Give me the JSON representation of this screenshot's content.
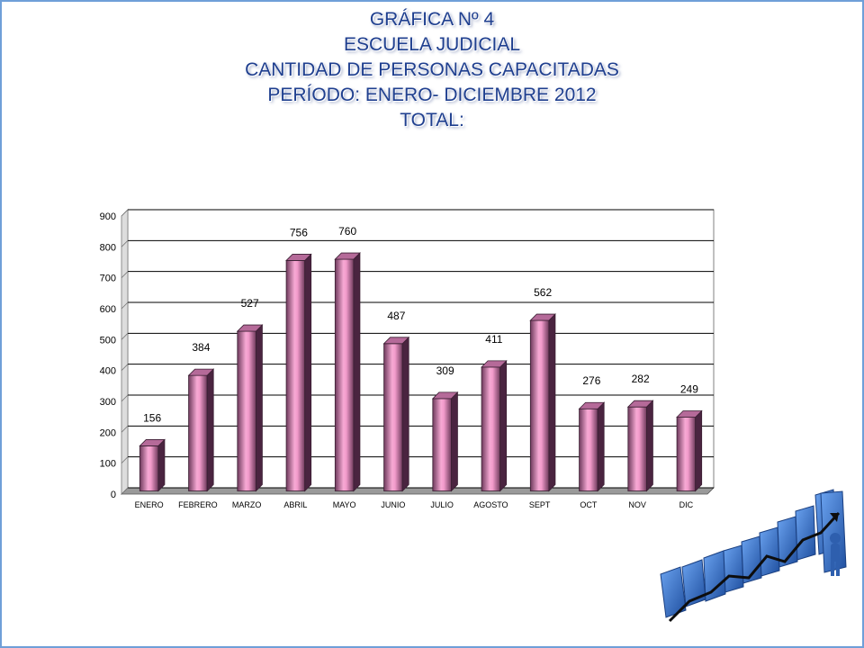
{
  "title_lines": [
    "GRÁFICA Nº 4",
    "ESCUELA JUDICIAL",
    "CANTIDAD DE PERSONAS CAPACITADAS",
    "PERÍODO: ENERO- DICIEMBRE 2012",
    "TOTAL:"
  ],
  "colors": {
    "title": "#1f3f8f",
    "bar_light": "#f7a9d4",
    "bar_dark": "#6e3a5c",
    "frame": "#6f9fd8",
    "deco_blue": "#3b72c6"
  },
  "chart_data": {
    "type": "bar",
    "style": "3d-column",
    "categories": [
      "ENERO",
      "FEBRERO",
      "MARZO",
      "ABRIL",
      "MAYO",
      "JUNIO",
      "JULIO",
      "AGOSTO",
      "SEPT",
      "OCT",
      "NOV",
      "DIC"
    ],
    "values": [
      156,
      384,
      527,
      756,
      760,
      487,
      309,
      411,
      562,
      276,
      282,
      249
    ],
    "ylim": [
      0,
      900
    ],
    "yticks": [
      0,
      100,
      200,
      300,
      400,
      500,
      600,
      700,
      800,
      900
    ],
    "grid": true,
    "legend": "none",
    "data_labels": true
  },
  "decoration": {
    "icon": "rising-bar-chart-icon"
  }
}
